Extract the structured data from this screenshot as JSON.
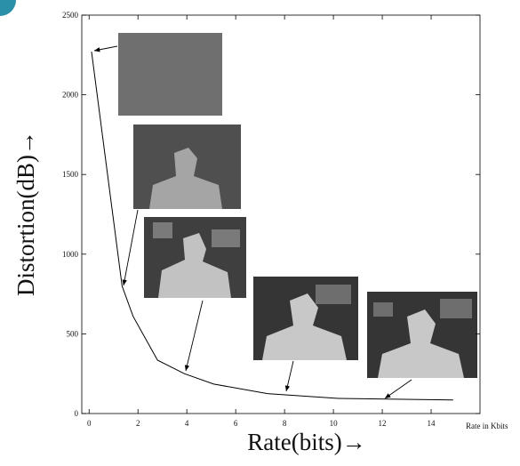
{
  "chart_data": {
    "type": "line",
    "x_label": "Rate(bits)→",
    "y_label": "Distortion(dB)→",
    "annotation": "Rate in Kbits",
    "x": [
      0.1,
      1.35,
      1.8,
      2.8,
      3.9,
      5.1,
      7.3,
      10.2,
      14.9
    ],
    "values": [
      2270,
      800,
      610,
      335,
      250,
      185,
      125,
      95,
      85
    ],
    "color": "#000000",
    "xlim": [
      -0.3,
      16
    ],
    "ylim": [
      0,
      2500
    ],
    "xticks": [
      0,
      2,
      4,
      6,
      8,
      10,
      12,
      14
    ],
    "yticks": [
      0,
      500,
      1000,
      1500,
      2000,
      2500
    ]
  }
}
